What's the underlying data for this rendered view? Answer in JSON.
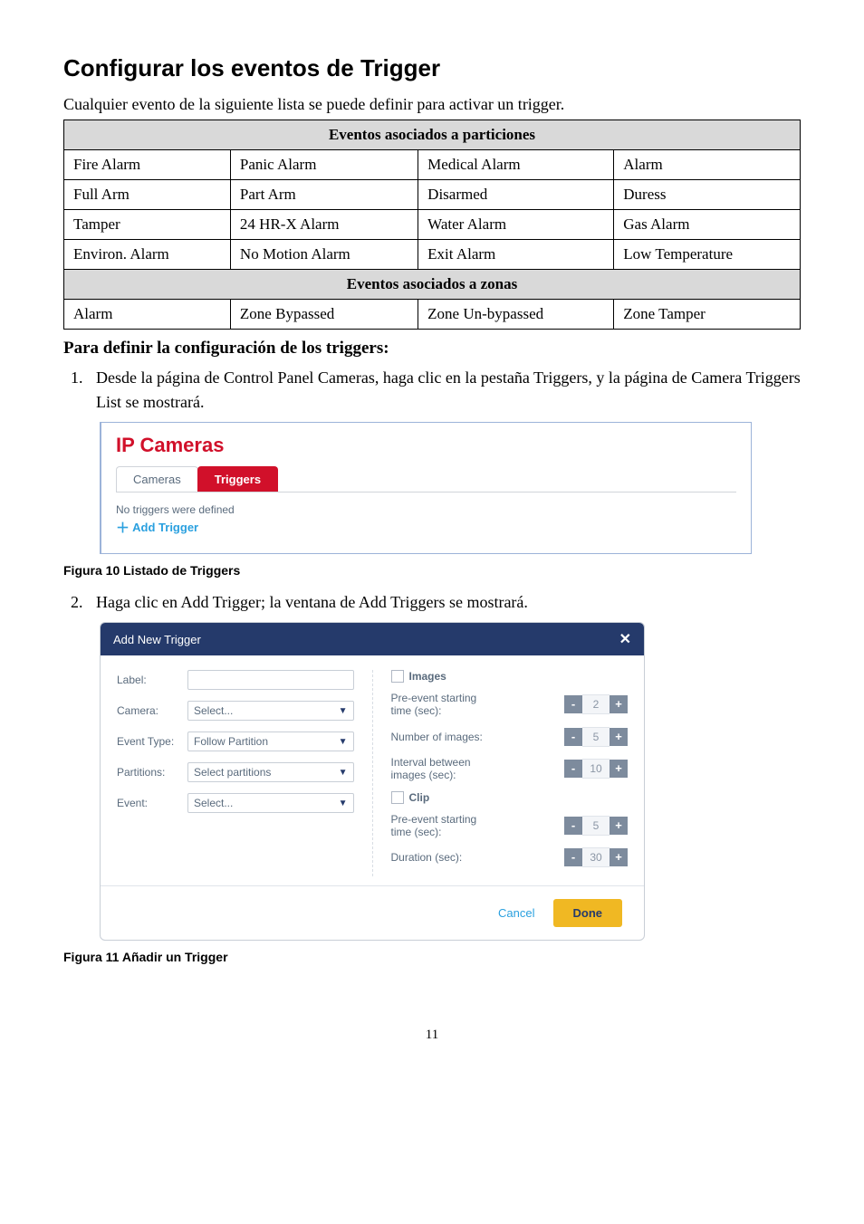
{
  "title": "Configurar los eventos de Trigger",
  "intro": "Cualquier evento de la siguiente lista se puede definir para activar un trigger.",
  "table": {
    "section1": "Eventos asociados a particiones",
    "rows1": [
      [
        "Fire Alarm",
        "Panic Alarm",
        "Medical Alarm",
        "Alarm"
      ],
      [
        "Full Arm",
        "Part Arm",
        "Disarmed",
        "Duress"
      ],
      [
        "Tamper",
        "24 HR-X Alarm",
        "Water Alarm",
        "Gas Alarm"
      ],
      [
        "Environ. Alarm",
        "No Motion Alarm",
        "Exit Alarm",
        "Low Temperature"
      ]
    ],
    "section2": "Eventos asociados a zonas",
    "rows2": [
      [
        "Alarm",
        "Zone Bypassed",
        "Zone Un-bypassed",
        "Zone Tamper"
      ]
    ]
  },
  "subheading": "Para definir la configuración de los triggers:",
  "steps": {
    "1": "Desde la página de Control Panel Cameras, haga clic en la pestaña Triggers, y la página de Camera Triggers List se mostrará.",
    "2": "Haga clic en Add Trigger; la ventana de Add Triggers se mostrará."
  },
  "ipcameras": {
    "title": "IP Cameras",
    "tab_cameras": "Cameras",
    "tab_triggers": "Triggers",
    "no_triggers": "No triggers were defined",
    "add_trigger": "Add Trigger"
  },
  "caption1": "Figura 10 Listado de Triggers",
  "caption2": "Figura 11 Añadir un Trigger",
  "dialog": {
    "title": "Add New Trigger",
    "labels": {
      "label": "Label:",
      "camera": "Camera:",
      "event_type": "Event Type:",
      "partitions": "Partitions:",
      "event": "Event:"
    },
    "selects": {
      "select": "Select...",
      "follow_partition": "Follow Partition",
      "select_partitions": "Select partitions"
    },
    "right": {
      "images": "Images",
      "pre_event": "Pre-event starting time (sec):",
      "num_images": "Number of images:",
      "interval": "Interval between images (sec):",
      "clip": "Clip",
      "duration": "Duration (sec):"
    },
    "vals": {
      "v2": "2",
      "v5a": "5",
      "v10": "10",
      "v5b": "5",
      "v30": "30"
    },
    "cancel": "Cancel",
    "done": "Done"
  },
  "page_num": "11"
}
